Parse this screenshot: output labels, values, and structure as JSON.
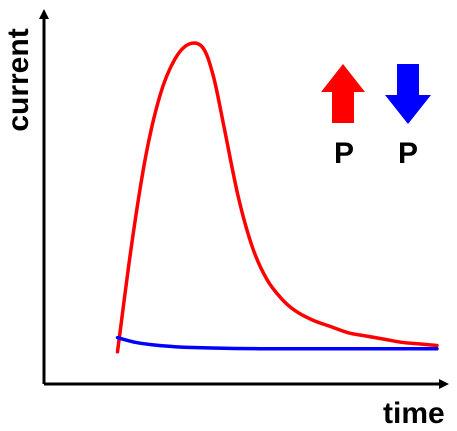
{
  "chart_data": {
    "type": "line",
    "title": "",
    "xlabel": "time",
    "ylabel": "current",
    "xlim": [
      0,
      10
    ],
    "ylim": [
      0,
      10
    ],
    "grid": false,
    "axis_ticks": false,
    "series": [
      {
        "color": "#ff0000",
        "legend_symbol": "up-arrow",
        "legend_label": "P",
        "x": [
          1.0,
          1.4,
          1.8,
          2.2,
          2.6,
          3.0,
          3.4,
          3.7,
          4.0,
          4.4,
          4.8,
          5.2,
          5.6,
          6.0,
          6.5,
          7.0,
          7.5,
          8.0,
          8.5,
          9.0,
          9.5,
          10.0
        ],
        "y": [
          0.1,
          3.5,
          6.3,
          8.2,
          9.3,
          9.8,
          9.7,
          8.8,
          7.2,
          5.0,
          3.4,
          2.4,
          1.8,
          1.4,
          1.1,
          0.9,
          0.7,
          0.6,
          0.5,
          0.4,
          0.35,
          0.3
        ]
      },
      {
        "color": "#0000ff",
        "legend_symbol": "down-arrow",
        "legend_label": "P",
        "x": [
          1.0,
          1.5,
          2.0,
          2.5,
          3.0,
          4.0,
          5.0,
          6.0,
          7.0,
          8.0,
          9.0,
          10.0
        ],
        "y": [
          0.55,
          0.4,
          0.32,
          0.27,
          0.24,
          0.21,
          0.2,
          0.2,
          0.2,
          0.2,
          0.2,
          0.2
        ]
      }
    ]
  }
}
